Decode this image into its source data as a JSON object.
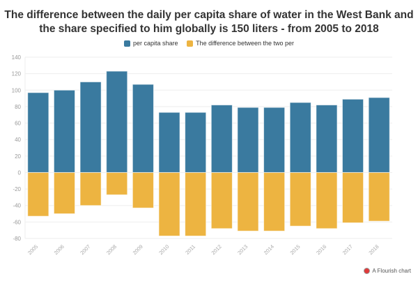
{
  "chart_data": {
    "type": "bar",
    "title": "The difference between the daily per capita share of water in the West Bank and the share specified to him globally is 150 liters - from 2005 to 2018",
    "categories": [
      "2005",
      "2006",
      "2007",
      "2008",
      "2009",
      "2010",
      "2011",
      "2012",
      "2013",
      "2014",
      "2015",
      "2016",
      "2017",
      "2018"
    ],
    "series": [
      {
        "name": "per capita share",
        "color": "#3a7a9f",
        "values": [
          97,
          100,
          110,
          123,
          107,
          73,
          73,
          82,
          79,
          79,
          85,
          82,
          89,
          91
        ]
      },
      {
        "name": "The difference between the two per",
        "color": "#edb441",
        "values": [
          -53,
          -50,
          -40,
          -27,
          -43,
          -77,
          -77,
          -68,
          -71,
          -71,
          -65,
          -68,
          -61,
          -59
        ]
      }
    ],
    "ylim": [
      -80,
      140
    ],
    "yticks": [
      140,
      120,
      100,
      80,
      60,
      40,
      20,
      0,
      -20,
      -40,
      -60,
      -80
    ],
    "grid": true,
    "legend": "top-center",
    "stacked": true
  },
  "credit": "A Flourish chart"
}
